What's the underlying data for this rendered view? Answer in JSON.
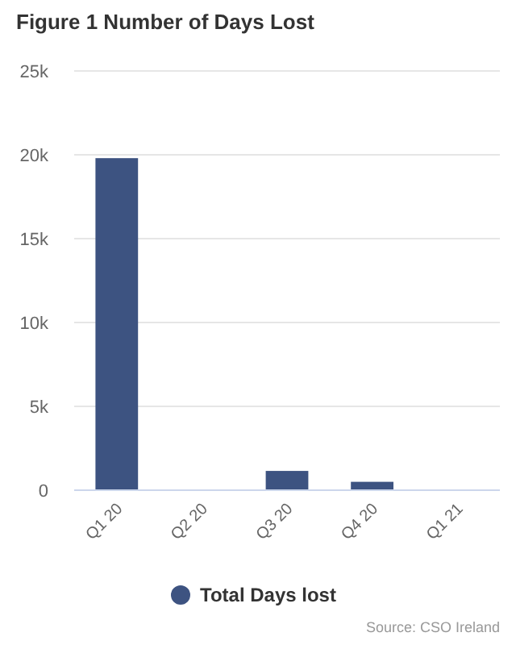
{
  "chart_data": {
    "type": "bar",
    "title": "Figure 1 Number of Days Lost",
    "categories": [
      "Q1 20",
      "Q2 20",
      "Q3 20",
      "Q4 20",
      "Q1 21"
    ],
    "series": [
      {
        "name": "Total Days lost",
        "color": "#3d5381",
        "values": [
          19800,
          0,
          1150,
          500,
          0
        ]
      }
    ],
    "ylim": [
      0,
      25000
    ],
    "yticks": [
      {
        "value": 0,
        "label": "0"
      },
      {
        "value": 5000,
        "label": "5k"
      },
      {
        "value": 10000,
        "label": "10k"
      },
      {
        "value": 15000,
        "label": "15k"
      },
      {
        "value": 20000,
        "label": "20k"
      },
      {
        "value": 25000,
        "label": "25k"
      }
    ],
    "grid": "y",
    "legend": "bottom",
    "annotations": [
      "Source: CSO Ireland"
    ]
  }
}
